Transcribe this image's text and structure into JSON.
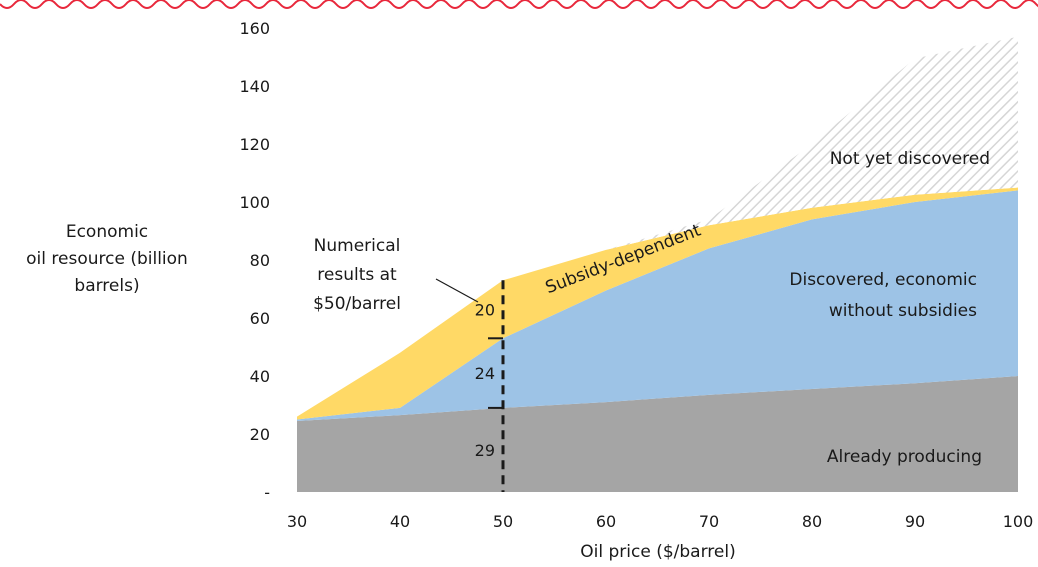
{
  "chart_data": {
    "type": "area",
    "x": [
      30,
      40,
      50,
      60,
      70,
      80,
      90,
      100
    ],
    "series": [
      {
        "name": "Already producing",
        "values": [
          24.5,
          26.5,
          29,
          31,
          33.5,
          35.5,
          37.5,
          40
        ]
      },
      {
        "name": "Discovered, economic without subsidies",
        "values": [
          0.5,
          2.5,
          24,
          38.5,
          50.5,
          58.5,
          62.5,
          64
        ]
      },
      {
        "name": "Subsidy-dependent",
        "values": [
          1,
          19,
          20,
          14,
          8,
          4,
          2.5,
          1
        ]
      },
      {
        "name": "Not yet discovered",
        "values": [
          0,
          0,
          0,
          0,
          2,
          22,
          47,
          52
        ]
      }
    ],
    "colors": {
      "Already producing": "#a5a5a5",
      "Discovered, economic without subsidies": "#9dc3e6",
      "Subsidy-dependent": "#ffd966",
      "Not yet discovered": "#dedede"
    },
    "series_labels": {
      "already_producing": "Already producing",
      "discovered_line1": "Discovered, economic",
      "discovered_line2": "without subsidies",
      "subsidy_dependent": "Subsidy-dependent",
      "not_yet_discovered": "Not yet discovered"
    },
    "xlabel": "Oil price ($/barrel)",
    "ylabel_lines": [
      "Economic",
      "oil resource (billion",
      "barrels)"
    ],
    "x_ticks": [
      "30",
      "40",
      "50",
      "60",
      "70",
      "80",
      "90",
      "100"
    ],
    "y_tick_values": [
      0,
      20,
      40,
      60,
      80,
      100,
      120,
      140,
      160
    ],
    "y_tick_labels": [
      "-",
      "20",
      "40",
      "60",
      "80",
      "100",
      "120",
      "140",
      "160"
    ],
    "xlim": [
      30,
      100
    ],
    "ylim": [
      0,
      160
    ],
    "grid": false,
    "legend": "none",
    "annotation": {
      "x": 50,
      "lines": [
        "Numerical",
        "results at",
        "$50/barrel"
      ],
      "values": [
        "29",
        "24",
        "20"
      ]
    },
    "border_color": "#e8283c"
  }
}
